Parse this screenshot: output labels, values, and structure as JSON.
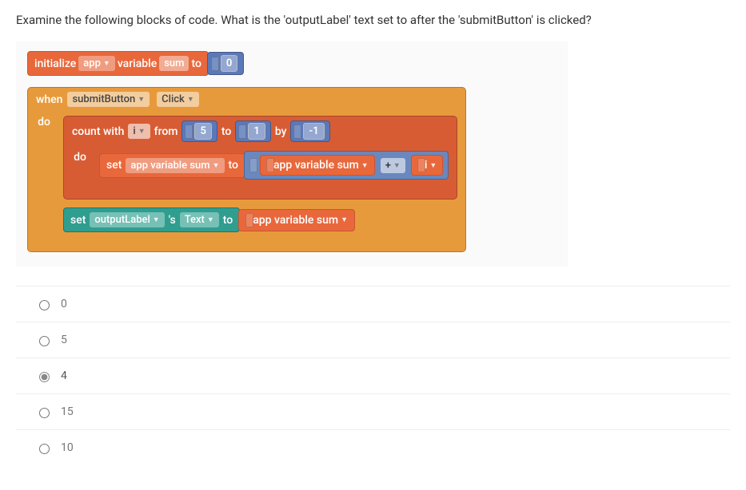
{
  "question": "Examine the following blocks of code. What is the 'outputLabel' text set to after the 'submitButton' is clicked?",
  "blocks": {
    "init": {
      "kw_initialize": "initialize",
      "scope": "app",
      "kw_variable": "variable",
      "varname": "sum",
      "kw_to": "to",
      "value": "0"
    },
    "event": {
      "kw_when": "when",
      "component": "submitButton",
      "action": "Click",
      "kw_do": "do"
    },
    "loop": {
      "kw_count": "count with",
      "var": "i",
      "kw_from": "from",
      "from_val": "5",
      "kw_to": "to",
      "to_val": "1",
      "kw_by": "by",
      "by_val": "-1",
      "kw_do": "do"
    },
    "setvar": {
      "kw_set": "set",
      "target": "app variable sum",
      "kw_to": "to"
    },
    "expr": {
      "left": "app variable sum",
      "op": "+",
      "right": "i"
    },
    "setlabel": {
      "kw_set": "set",
      "component": "outputLabel",
      "apos": "'s",
      "prop": "Text",
      "kw_to": "to",
      "value": "app variable sum"
    }
  },
  "options": [
    {
      "label": "0",
      "selected": false
    },
    {
      "label": "5",
      "selected": false
    },
    {
      "label": "4",
      "selected": true
    },
    {
      "label": "15",
      "selected": false
    },
    {
      "label": "10",
      "selected": false
    }
  ],
  "colors": {
    "orange": "#e8683c",
    "amber": "#e79a3c",
    "blue": "#5b79b8",
    "teal": "#2f9e8f",
    "bluegrey_expr": "#6a88bd"
  }
}
